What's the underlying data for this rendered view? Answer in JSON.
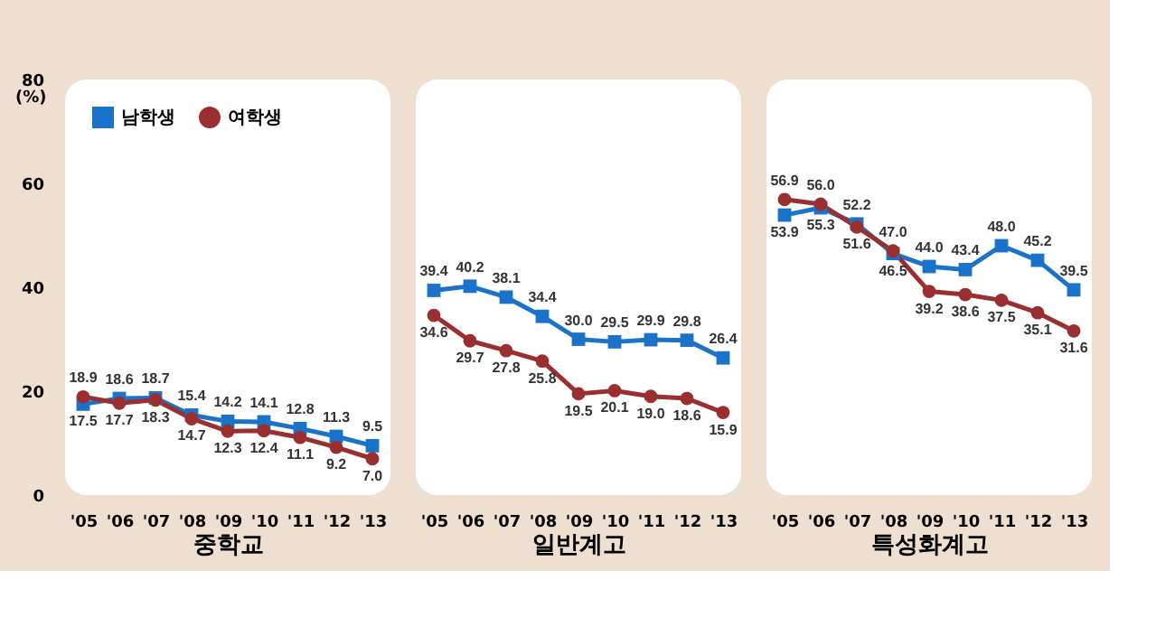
{
  "chart_data": [
    {
      "type": "line",
      "xlabel": "중학교",
      "ylabel": "(%)",
      "categories": [
        "'05",
        "'06",
        "'07",
        "'08",
        "'09",
        "'10",
        "'11",
        "'12",
        "'13"
      ],
      "ylim": [
        0,
        80
      ],
      "yticks": [
        0,
        20,
        40,
        60,
        80
      ],
      "grid": false,
      "legend": "top left",
      "series": [
        {
          "name": "남학생",
          "color": "#1a73c8",
          "marker": "square",
          "values": [
            17.5,
            18.6,
            18.7,
            15.4,
            14.2,
            14.1,
            12.8,
            11.3,
            9.5
          ],
          "value_labels": [
            "17.5",
            "18.6",
            "18.7",
            "15.4",
            "14.2",
            "14.1",
            "12.8",
            "11.3",
            "9.5"
          ]
        },
        {
          "name": "여학생",
          "color": "#9b2f2f",
          "marker": "circle",
          "values": [
            18.9,
            17.7,
            18.3,
            14.7,
            12.3,
            12.4,
            11.1,
            9.2,
            7.0
          ],
          "value_labels": [
            "18.9",
            "17.7",
            "18.3",
            "14.7",
            "12.3",
            "12.4",
            "11.1",
            "9.2",
            "7.0"
          ]
        }
      ]
    },
    {
      "type": "line",
      "xlabel": "일반계고",
      "categories": [
        "'05",
        "'06",
        "'07",
        "'08",
        "'09",
        "'10",
        "'11",
        "'12",
        "'13"
      ],
      "ylim": [
        0,
        80
      ],
      "yticks": [
        0,
        20,
        40,
        60,
        80
      ],
      "grid": false,
      "tick_labels": "x",
      "series": [
        {
          "name": "남학생",
          "color": "#1a73c8",
          "marker": "square",
          "values": [
            39.4,
            40.2,
            38.1,
            34.4,
            30.0,
            29.5,
            29.9,
            29.8,
            26.4
          ],
          "value_labels": [
            "39.4",
            "40.2",
            "38.1",
            "34.4",
            "30.0",
            "29.5",
            "29.9",
            "29.8",
            "26.4"
          ]
        },
        {
          "name": "여학생",
          "color": "#9b2f2f",
          "marker": "circle",
          "values": [
            34.6,
            29.7,
            27.8,
            25.8,
            19.5,
            20.1,
            19.0,
            18.6,
            15.9
          ],
          "value_labels": [
            "34.6",
            "29.7",
            "27.8",
            "25.8",
            "19.5",
            "20.1",
            "19.0",
            "18.6",
            "15.9"
          ]
        }
      ]
    },
    {
      "type": "line",
      "xlabel": "특성화계고",
      "categories": [
        "'05",
        "'06",
        "'07",
        "'08",
        "'09",
        "'10",
        "'11",
        "'12",
        "'13"
      ],
      "ylim": [
        0,
        80
      ],
      "yticks": [
        0,
        20,
        40,
        60,
        80
      ],
      "grid": false,
      "tick_labels": "x",
      "series": [
        {
          "name": "남학생",
          "color": "#1a73c8",
          "marker": "square",
          "values": [
            53.9,
            55.3,
            52.2,
            46.5,
            44.0,
            43.4,
            48.0,
            45.2,
            39.5
          ],
          "value_labels": [
            "53.9",
            "55.3",
            "52.2",
            "46.5",
            "44.0",
            "43.4",
            "48.0",
            "45.2",
            "39.5"
          ]
        },
        {
          "name": "여학생",
          "color": "#9b2f2f",
          "marker": "circle",
          "values": [
            56.9,
            56.0,
            51.6,
            47.0,
            39.2,
            38.6,
            37.5,
            35.1,
            31.6
          ],
          "value_labels": [
            "56.9",
            "56.0",
            "51.6",
            "47.0",
            "39.2",
            "38.6",
            "37.5",
            "35.1",
            "31.6"
          ]
        }
      ]
    }
  ]
}
